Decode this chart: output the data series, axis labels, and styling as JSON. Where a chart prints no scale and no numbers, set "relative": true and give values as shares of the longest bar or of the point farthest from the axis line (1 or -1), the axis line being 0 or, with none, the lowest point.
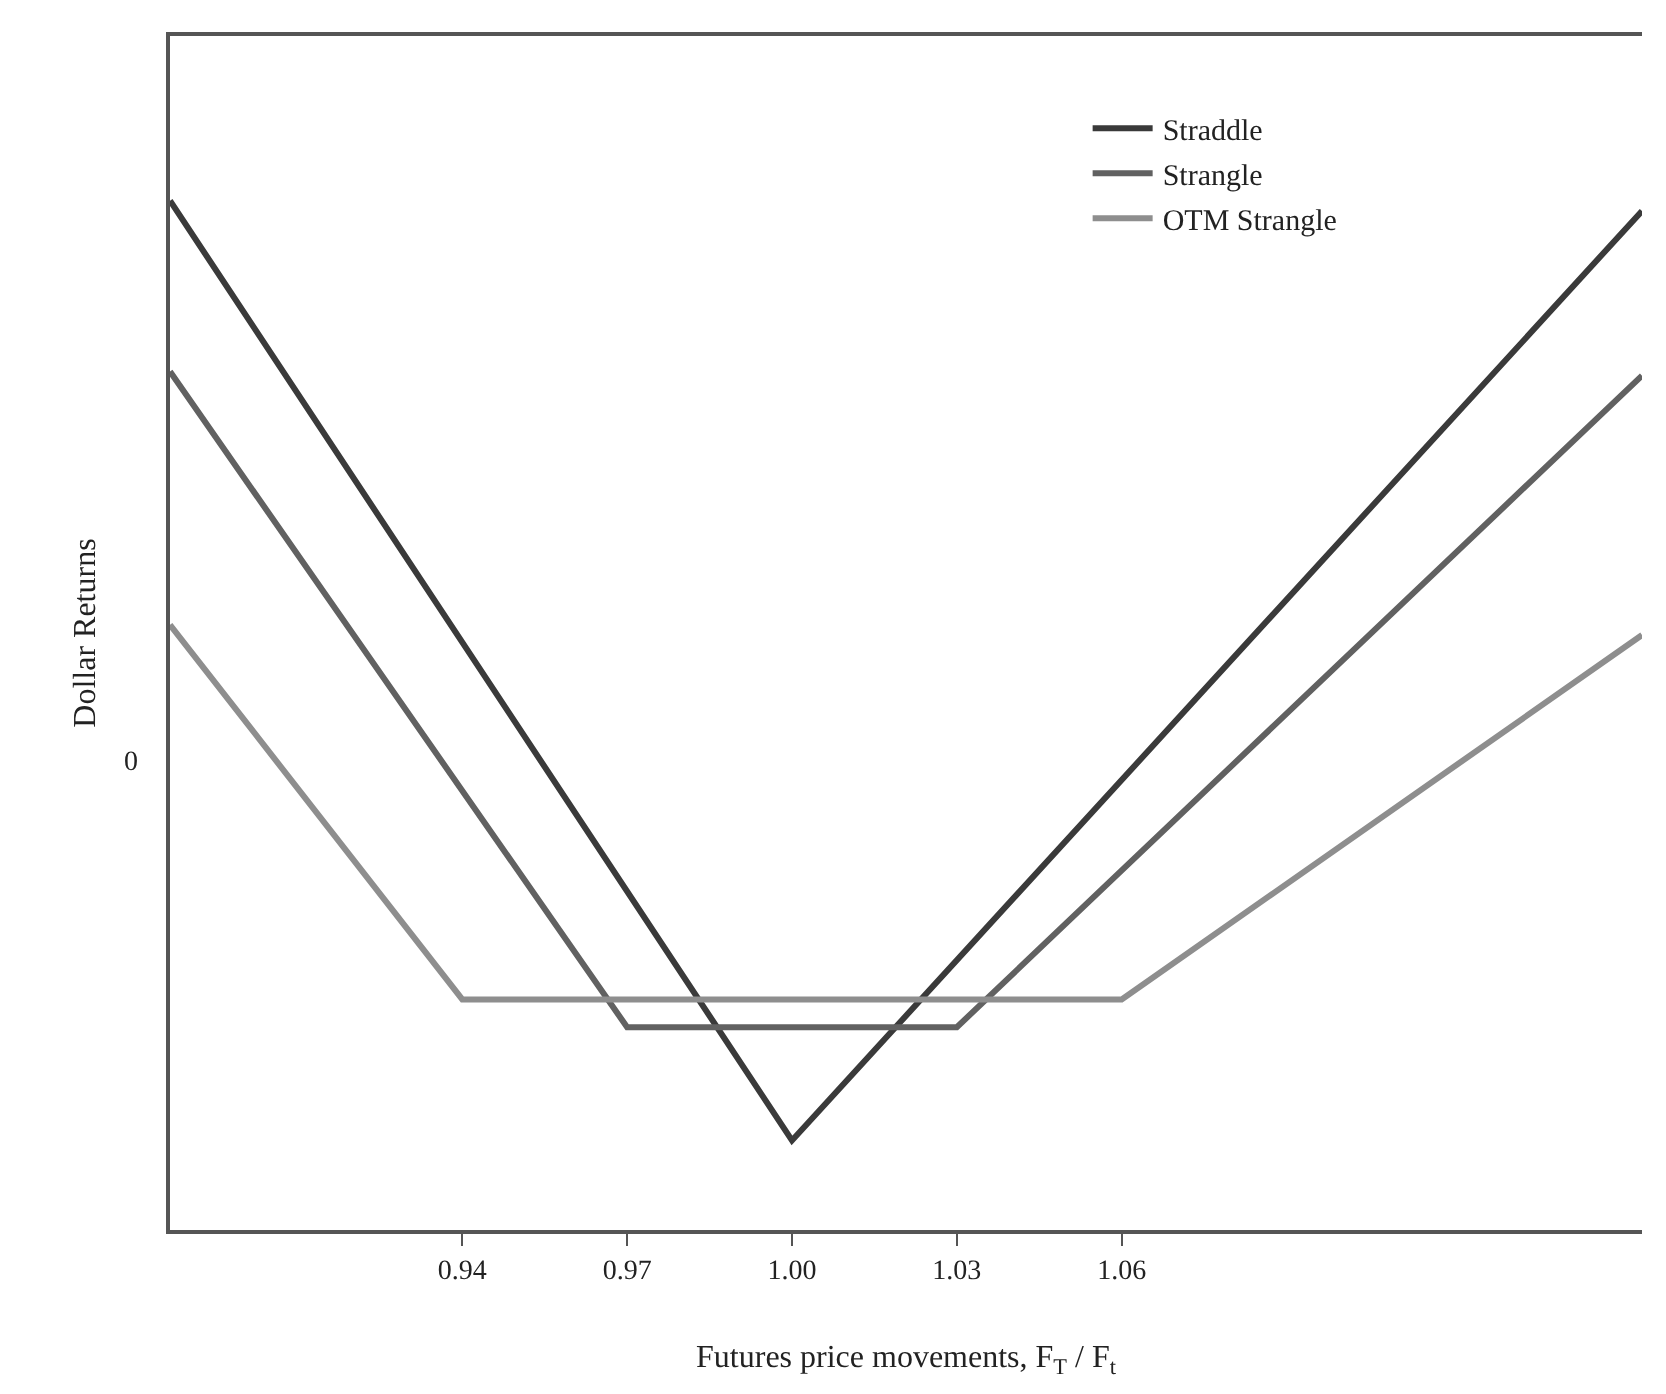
{
  "chart_data": {
    "type": "line",
    "relative": true,
    "xlabel": "Futures price movements, F$_{T}$ / F$_{t}$",
    "ylabel": "Dollar Returns",
    "xlim": [
      0.8868,
      1.1547
    ],
    "xticks": [
      0.94,
      0.97,
      {
        "value": 1,
        "label": "1.00"
      },
      1.03,
      1.06
    ],
    "annotations": [
      "0"
    ],
    "series": [
      {
        "name": "Straddle",
        "color": "#3a3a3a",
        "x": [
          0.8868,
          1.0,
          1.1547
        ],
        "values": [
          1.0,
          0.087,
          0.99
        ]
      },
      {
        "name": "Strangle",
        "color": "#616161",
        "x": [
          0.8868,
          0.97,
          1.03,
          1.1547
        ],
        "values": [
          0.834,
          0.197,
          0.197,
          0.83
        ]
      },
      {
        "name": "OTM Strangle",
        "color": "#8e8e8e",
        "x": [
          0.8868,
          0.94,
          1.06,
          1.1547
        ],
        "values": [
          0.588,
          0.224,
          0.224,
          0.578
        ]
      }
    ],
    "legend": "top right",
    "grid": false,
    "marker": "none",
    "line_style": "solid"
  }
}
